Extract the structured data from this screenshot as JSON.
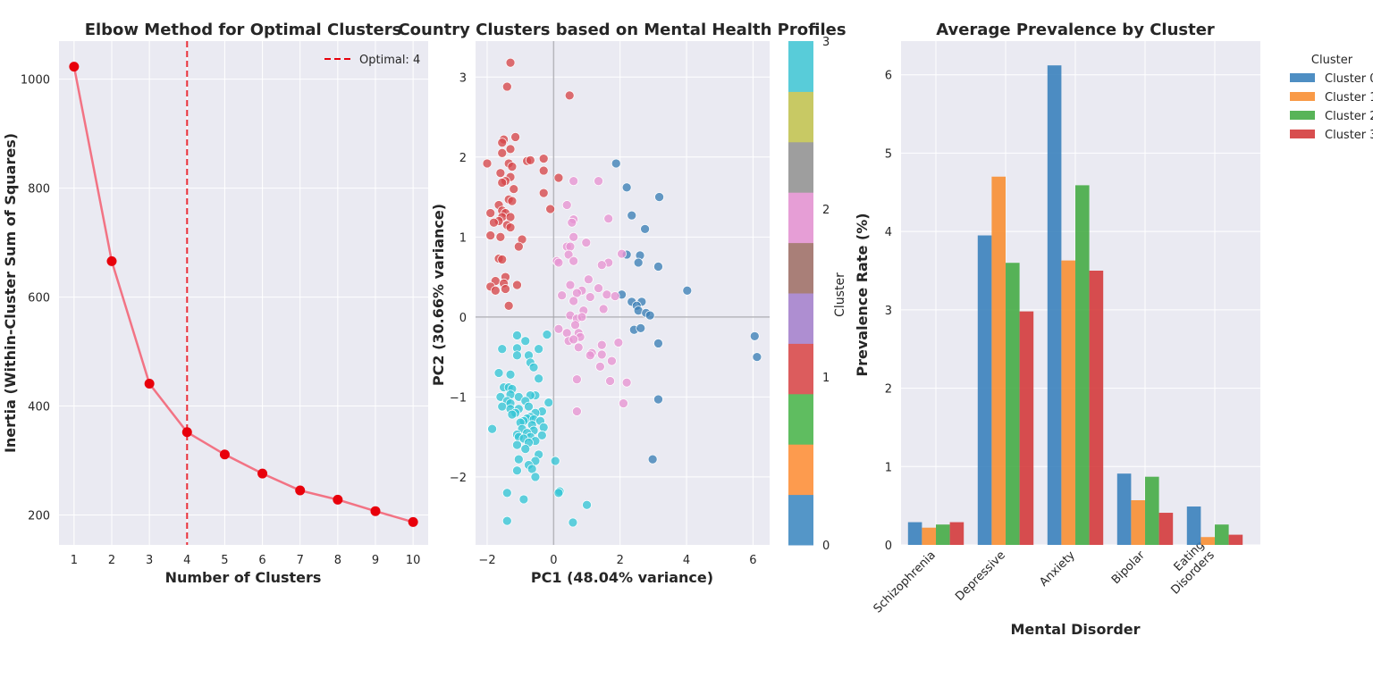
{
  "chart_data": [
    {
      "type": "line",
      "title": "Elbow Method for Optimal Clusters",
      "xlabel": "Number of Clusters",
      "ylabel": "Inertia (Within-Cluster Sum of Squares)",
      "x": [
        1,
        2,
        3,
        4,
        5,
        6,
        7,
        8,
        9,
        10
      ],
      "series": [
        {
          "values": [
            1023,
            666,
            441,
            352,
            311,
            276,
            245,
            228,
            207,
            187
          ]
        }
      ],
      "xlim": [
        0.6,
        10.4
      ],
      "ylim": [
        145,
        1070
      ],
      "xticks": [
        1,
        2,
        3,
        4,
        5,
        6,
        7,
        8,
        9,
        10
      ],
      "yticks": [
        200,
        400,
        600,
        800,
        1000
      ],
      "line_color": "#f27384",
      "marker_color": "#e8000b",
      "optimal": {
        "x": 4,
        "label": "Optimal: 4",
        "color": "#e8000b"
      },
      "legend_position": "top-right",
      "grid": true
    },
    {
      "type": "scatter",
      "title": "Country Clusters based on Mental Health Profiles",
      "xlabel": "PC1 (48.04% variance)",
      "ylabel": "PC2 (30.66% variance)",
      "xlim": [
        -2.35,
        6.5
      ],
      "ylim": [
        -2.85,
        3.45
      ],
      "xticks": [
        -2,
        0,
        2,
        4,
        6
      ],
      "yticks": [
        -2,
        -1,
        0,
        1,
        2,
        3
      ],
      "grid": true,
      "cluster_colors": {
        "0": "#3b7fb6",
        "1": "#d6464a",
        "2": "#e794d2",
        "3": "#35c5d6"
      },
      "points": [
        {
          "x": 1.88,
          "y": 1.92,
          "c": 0
        },
        {
          "x": 2.2,
          "y": 1.62,
          "c": 0
        },
        {
          "x": 3.18,
          "y": 1.5,
          "c": 0
        },
        {
          "x": 2.35,
          "y": 1.27,
          "c": 0
        },
        {
          "x": 2.75,
          "y": 1.1,
          "c": 0
        },
        {
          "x": 2.2,
          "y": 0.78,
          "c": 0
        },
        {
          "x": 2.6,
          "y": 0.77,
          "c": 0
        },
        {
          "x": 2.55,
          "y": 0.68,
          "c": 0
        },
        {
          "x": 3.15,
          "y": 0.63,
          "c": 0
        },
        {
          "x": 4.02,
          "y": 0.33,
          "c": 0
        },
        {
          "x": 2.05,
          "y": 0.28,
          "c": 0
        },
        {
          "x": 2.35,
          "y": 0.19,
          "c": 0
        },
        {
          "x": 2.65,
          "y": 0.19,
          "c": 0
        },
        {
          "x": 2.5,
          "y": 0.14,
          "c": 0
        },
        {
          "x": 2.55,
          "y": 0.08,
          "c": 0
        },
        {
          "x": 2.78,
          "y": 0.05,
          "c": 0
        },
        {
          "x": 2.9,
          "y": 0.02,
          "c": 0
        },
        {
          "x": 2.42,
          "y": -0.16,
          "c": 0
        },
        {
          "x": 2.62,
          "y": -0.14,
          "c": 0
        },
        {
          "x": 3.15,
          "y": -0.33,
          "c": 0
        },
        {
          "x": 6.05,
          "y": -0.24,
          "c": 0
        },
        {
          "x": 6.12,
          "y": -0.5,
          "c": 0
        },
        {
          "x": 3.15,
          "y": -1.03,
          "c": 0
        },
        {
          "x": 2.98,
          "y": -1.78,
          "c": 0
        },
        {
          "x": -1.3,
          "y": 3.18,
          "c": 1
        },
        {
          "x": -1.4,
          "y": 2.88,
          "c": 1
        },
        {
          "x": 0.48,
          "y": 2.77,
          "c": 1
        },
        {
          "x": -1.15,
          "y": 2.25,
          "c": 1
        },
        {
          "x": -1.5,
          "y": 2.22,
          "c": 1
        },
        {
          "x": -1.55,
          "y": 2.18,
          "c": 1
        },
        {
          "x": -1.3,
          "y": 2.1,
          "c": 1
        },
        {
          "x": -1.55,
          "y": 2.05,
          "c": 1
        },
        {
          "x": -0.3,
          "y": 1.98,
          "c": 1
        },
        {
          "x": -0.8,
          "y": 1.95,
          "c": 1
        },
        {
          "x": -0.7,
          "y": 1.96,
          "c": 1
        },
        {
          "x": -1.35,
          "y": 1.92,
          "c": 1
        },
        {
          "x": -2.0,
          "y": 1.92,
          "c": 1
        },
        {
          "x": -1.25,
          "y": 1.88,
          "c": 1
        },
        {
          "x": -0.3,
          "y": 1.83,
          "c": 1
        },
        {
          "x": -1.6,
          "y": 1.8,
          "c": 1
        },
        {
          "x": -1.3,
          "y": 1.75,
          "c": 1
        },
        {
          "x": 0.15,
          "y": 1.74,
          "c": 1
        },
        {
          "x": -1.45,
          "y": 1.7,
          "c": 1
        },
        {
          "x": -1.55,
          "y": 1.68,
          "c": 1
        },
        {
          "x": -1.2,
          "y": 1.6,
          "c": 1
        },
        {
          "x": -0.3,
          "y": 1.55,
          "c": 1
        },
        {
          "x": -1.35,
          "y": 1.47,
          "c": 1
        },
        {
          "x": -1.25,
          "y": 1.45,
          "c": 1
        },
        {
          "x": -1.65,
          "y": 1.4,
          "c": 1
        },
        {
          "x": -1.55,
          "y": 1.33,
          "c": 1
        },
        {
          "x": -0.1,
          "y": 1.35,
          "c": 1
        },
        {
          "x": -1.9,
          "y": 1.3,
          "c": 1
        },
        {
          "x": -1.45,
          "y": 1.3,
          "c": 1
        },
        {
          "x": -1.55,
          "y": 1.25,
          "c": 1
        },
        {
          "x": -1.3,
          "y": 1.25,
          "c": 1
        },
        {
          "x": -1.65,
          "y": 1.2,
          "c": 1
        },
        {
          "x": -1.8,
          "y": 1.18,
          "c": 1
        },
        {
          "x": -1.4,
          "y": 1.15,
          "c": 1
        },
        {
          "x": -1.3,
          "y": 1.12,
          "c": 1
        },
        {
          "x": -1.9,
          "y": 1.02,
          "c": 1
        },
        {
          "x": -1.6,
          "y": 1.0,
          "c": 1
        },
        {
          "x": -0.95,
          "y": 0.97,
          "c": 1
        },
        {
          "x": -1.05,
          "y": 0.88,
          "c": 1
        },
        {
          "x": -1.65,
          "y": 0.73,
          "c": 1
        },
        {
          "x": -1.55,
          "y": 0.72,
          "c": 1
        },
        {
          "x": -1.45,
          "y": 0.5,
          "c": 1
        },
        {
          "x": -1.75,
          "y": 0.45,
          "c": 1
        },
        {
          "x": -1.5,
          "y": 0.42,
          "c": 1
        },
        {
          "x": -1.1,
          "y": 0.4,
          "c": 1
        },
        {
          "x": -1.9,
          "y": 0.38,
          "c": 1
        },
        {
          "x": -1.75,
          "y": 0.33,
          "c": 1
        },
        {
          "x": -1.45,
          "y": 0.35,
          "c": 1
        },
        {
          "x": -1.35,
          "y": 0.14,
          "c": 1
        },
        {
          "x": 0.6,
          "y": 1.7,
          "c": 2
        },
        {
          "x": 1.35,
          "y": 1.7,
          "c": 2
        },
        {
          "x": 0.4,
          "y": 1.4,
          "c": 2
        },
        {
          "x": 1.65,
          "y": 1.23,
          "c": 2
        },
        {
          "x": 0.6,
          "y": 1.22,
          "c": 2
        },
        {
          "x": 0.55,
          "y": 1.18,
          "c": 2
        },
        {
          "x": 0.6,
          "y": 1.0,
          "c": 2
        },
        {
          "x": 0.98,
          "y": 0.93,
          "c": 2
        },
        {
          "x": 0.4,
          "y": 0.88,
          "c": 2
        },
        {
          "x": 0.5,
          "y": 0.88,
          "c": 2
        },
        {
          "x": 0.45,
          "y": 0.78,
          "c": 2
        },
        {
          "x": 2.05,
          "y": 0.79,
          "c": 2
        },
        {
          "x": 0.1,
          "y": 0.7,
          "c": 2
        },
        {
          "x": 0.6,
          "y": 0.7,
          "c": 2
        },
        {
          "x": 1.65,
          "y": 0.68,
          "c": 2
        },
        {
          "x": 1.45,
          "y": 0.65,
          "c": 2
        },
        {
          "x": 0.15,
          "y": 0.68,
          "c": 2
        },
        {
          "x": 1.05,
          "y": 0.47,
          "c": 2
        },
        {
          "x": 0.5,
          "y": 0.4,
          "c": 2
        },
        {
          "x": 1.35,
          "y": 0.36,
          "c": 2
        },
        {
          "x": 0.85,
          "y": 0.33,
          "c": 2
        },
        {
          "x": 0.7,
          "y": 0.3,
          "c": 2
        },
        {
          "x": 1.6,
          "y": 0.28,
          "c": 2
        },
        {
          "x": 1.85,
          "y": 0.26,
          "c": 2
        },
        {
          "x": 0.25,
          "y": 0.27,
          "c": 2
        },
        {
          "x": 1.1,
          "y": 0.25,
          "c": 2
        },
        {
          "x": 0.6,
          "y": 0.2,
          "c": 2
        },
        {
          "x": 1.5,
          "y": 0.1,
          "c": 2
        },
        {
          "x": 0.9,
          "y": 0.08,
          "c": 2
        },
        {
          "x": 0.5,
          "y": 0.02,
          "c": 2
        },
        {
          "x": 0.7,
          "y": -0.02,
          "c": 2
        },
        {
          "x": 0.85,
          "y": 0.0,
          "c": 2
        },
        {
          "x": 0.65,
          "y": -0.1,
          "c": 2
        },
        {
          "x": 0.15,
          "y": -0.15,
          "c": 2
        },
        {
          "x": 0.4,
          "y": -0.2,
          "c": 2
        },
        {
          "x": 0.75,
          "y": -0.2,
          "c": 2
        },
        {
          "x": 0.8,
          "y": -0.25,
          "c": 2
        },
        {
          "x": 0.45,
          "y": -0.3,
          "c": 2
        },
        {
          "x": 0.6,
          "y": -0.28,
          "c": 2
        },
        {
          "x": 1.45,
          "y": -0.35,
          "c": 2
        },
        {
          "x": 1.95,
          "y": -0.32,
          "c": 2
        },
        {
          "x": 0.75,
          "y": -0.38,
          "c": 2
        },
        {
          "x": 1.15,
          "y": -0.45,
          "c": 2
        },
        {
          "x": 1.1,
          "y": -0.48,
          "c": 2
        },
        {
          "x": 1.45,
          "y": -0.47,
          "c": 2
        },
        {
          "x": 1.75,
          "y": -0.55,
          "c": 2
        },
        {
          "x": 1.4,
          "y": -0.62,
          "c": 2
        },
        {
          "x": 0.7,
          "y": -0.78,
          "c": 2
        },
        {
          "x": 1.7,
          "y": -0.8,
          "c": 2
        },
        {
          "x": 2.2,
          "y": -0.82,
          "c": 2
        },
        {
          "x": 2.1,
          "y": -1.08,
          "c": 2
        },
        {
          "x": 0.7,
          "y": -1.18,
          "c": 2
        },
        {
          "x": -0.2,
          "y": -0.22,
          "c": 3
        },
        {
          "x": -1.1,
          "y": -0.23,
          "c": 3
        },
        {
          "x": -0.85,
          "y": -0.3,
          "c": 3
        },
        {
          "x": -1.55,
          "y": -0.4,
          "c": 3
        },
        {
          "x": -1.1,
          "y": -0.39,
          "c": 3
        },
        {
          "x": -0.45,
          "y": -0.4,
          "c": 3
        },
        {
          "x": -0.75,
          "y": -0.48,
          "c": 3
        },
        {
          "x": -1.1,
          "y": -0.48,
          "c": 3
        },
        {
          "x": -0.7,
          "y": -0.57,
          "c": 3
        },
        {
          "x": -0.6,
          "y": -0.63,
          "c": 3
        },
        {
          "x": -1.3,
          "y": -0.72,
          "c": 3
        },
        {
          "x": -1.65,
          "y": -0.7,
          "c": 3
        },
        {
          "x": -0.45,
          "y": -0.77,
          "c": 3
        },
        {
          "x": -1.5,
          "y": -0.88,
          "c": 3
        },
        {
          "x": -1.35,
          "y": -0.88,
          "c": 3
        },
        {
          "x": -1.25,
          "y": -0.9,
          "c": 3
        },
        {
          "x": -1.3,
          "y": -0.97,
          "c": 3
        },
        {
          "x": -0.55,
          "y": -0.98,
          "c": 3
        },
        {
          "x": -0.7,
          "y": -0.98,
          "c": 3
        },
        {
          "x": -1.6,
          "y": -1.0,
          "c": 3
        },
        {
          "x": -1.05,
          "y": -1.0,
          "c": 3
        },
        {
          "x": -0.85,
          "y": -1.05,
          "c": 3
        },
        {
          "x": -1.4,
          "y": -1.05,
          "c": 3
        },
        {
          "x": -1.3,
          "y": -1.08,
          "c": 3
        },
        {
          "x": -0.15,
          "y": -1.07,
          "c": 3
        },
        {
          "x": -1.55,
          "y": -1.12,
          "c": 3
        },
        {
          "x": -0.75,
          "y": -1.12,
          "c": 3
        },
        {
          "x": -1.3,
          "y": -1.15,
          "c": 3
        },
        {
          "x": -1.05,
          "y": -1.15,
          "c": 3
        },
        {
          "x": -0.35,
          "y": -1.18,
          "c": 3
        },
        {
          "x": -1.15,
          "y": -1.2,
          "c": 3
        },
        {
          "x": -1.25,
          "y": -1.22,
          "c": 3
        },
        {
          "x": -0.55,
          "y": -1.2,
          "c": 3
        },
        {
          "x": -0.7,
          "y": -1.25,
          "c": 3
        },
        {
          "x": -0.8,
          "y": -1.27,
          "c": 3
        },
        {
          "x": -0.6,
          "y": -1.28,
          "c": 3
        },
        {
          "x": -0.9,
          "y": -1.3,
          "c": 3
        },
        {
          "x": -0.4,
          "y": -1.3,
          "c": 3
        },
        {
          "x": -1.0,
          "y": -1.32,
          "c": 3
        },
        {
          "x": -0.65,
          "y": -1.35,
          "c": 3
        },
        {
          "x": -0.3,
          "y": -1.38,
          "c": 3
        },
        {
          "x": -1.85,
          "y": -1.4,
          "c": 3
        },
        {
          "x": -0.95,
          "y": -1.4,
          "c": 3
        },
        {
          "x": -0.6,
          "y": -1.42,
          "c": 3
        },
        {
          "x": -0.8,
          "y": -1.45,
          "c": 3
        },
        {
          "x": -1.1,
          "y": -1.47,
          "c": 3
        },
        {
          "x": -0.35,
          "y": -1.48,
          "c": 3
        },
        {
          "x": -0.7,
          "y": -1.5,
          "c": 3
        },
        {
          "x": -1.05,
          "y": -1.5,
          "c": 3
        },
        {
          "x": -0.9,
          "y": -1.52,
          "c": 3
        },
        {
          "x": -0.55,
          "y": -1.55,
          "c": 3
        },
        {
          "x": -0.75,
          "y": -1.57,
          "c": 3
        },
        {
          "x": -1.1,
          "y": -1.6,
          "c": 3
        },
        {
          "x": -0.85,
          "y": -1.65,
          "c": 3
        },
        {
          "x": -0.45,
          "y": -1.72,
          "c": 3
        },
        {
          "x": -1.05,
          "y": -1.78,
          "c": 3
        },
        {
          "x": -0.55,
          "y": -1.8,
          "c": 3
        },
        {
          "x": 0.05,
          "y": -1.8,
          "c": 3
        },
        {
          "x": -0.75,
          "y": -1.85,
          "c": 3
        },
        {
          "x": -1.1,
          "y": -1.92,
          "c": 3
        },
        {
          "x": -0.65,
          "y": -1.9,
          "c": 3
        },
        {
          "x": -0.55,
          "y": -2.0,
          "c": 3
        },
        {
          "x": 0.18,
          "y": -2.18,
          "c": 3
        },
        {
          "x": 0.15,
          "y": -2.2,
          "c": 3
        },
        {
          "x": -1.4,
          "y": -2.2,
          "c": 3
        },
        {
          "x": -0.9,
          "y": -2.28,
          "c": 3
        },
        {
          "x": 1.0,
          "y": -2.35,
          "c": 3
        },
        {
          "x": -1.4,
          "y": -2.55,
          "c": 3
        },
        {
          "x": 0.58,
          "y": -2.57,
          "c": 3
        }
      ]
    },
    {
      "type": "heatmap",
      "label": "Cluster",
      "range": [
        0,
        3
      ],
      "ticks": [
        0,
        1,
        2,
        3
      ],
      "colors": [
        "#5496c8",
        "#fd9b4e",
        "#5fbd60",
        "#dc5c5d",
        "#ae8ed1",
        "#a97f78",
        "#e69ed6",
        "#9e9e9e",
        "#c8c964",
        "#58ccd9"
      ]
    },
    {
      "type": "bar",
      "title": "Average Prevalence by Cluster",
      "xlabel": "Mental Disorder",
      "ylabel": "Prevalence Rate (%)",
      "categories": [
        "Schizophrenia",
        "Depressive",
        "Anxiety",
        "Bipolar",
        "Eating Disorders"
      ],
      "series": [
        {
          "name": "Cluster 0",
          "color": "#3b82bd",
          "values": [
            0.29,
            3.95,
            6.12,
            0.91,
            0.49
          ]
        },
        {
          "name": "Cluster 1",
          "color": "#f88f33",
          "values": [
            0.22,
            4.7,
            3.63,
            0.57,
            0.1
          ]
        },
        {
          "name": "Cluster 2",
          "color": "#46ac46",
          "values": [
            0.26,
            3.6,
            4.59,
            0.87,
            0.26
          ]
        },
        {
          "name": "Cluster 3",
          "color": "#d43b3c",
          "values": [
            0.29,
            2.98,
            3.5,
            0.41,
            0.13
          ]
        }
      ],
      "ylim": [
        0,
        6.43
      ],
      "yticks": [
        0,
        1,
        2,
        3,
        4,
        5,
        6
      ],
      "legend_title": "Cluster",
      "legend_position": "outside top-right",
      "grid": true
    }
  ]
}
